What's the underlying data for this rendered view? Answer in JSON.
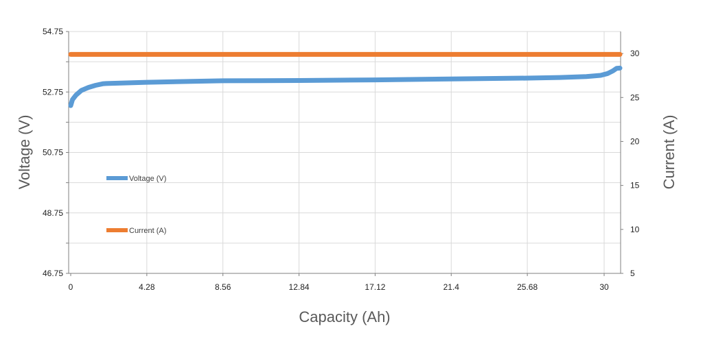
{
  "chart_data": {
    "type": "line",
    "xlabel": "Capacity (Ah)",
    "ylabel": "Voltage (V)",
    "y2label": "Current (A)",
    "xlim": [
      0,
      31
    ],
    "ylim": [
      46.75,
      54.75
    ],
    "y2lim": [
      5,
      32.5
    ],
    "x_ticks": [
      0,
      4.28,
      8.56,
      12.84,
      17.12,
      21.4,
      25.68,
      30
    ],
    "x_tick_labels": [
      "0",
      "4.28",
      "8.56",
      "12.84",
      "17.12",
      "21.4",
      "25.68",
      "30"
    ],
    "y_ticks": [
      46.75,
      48.75,
      50.75,
      52.75,
      54.75
    ],
    "y_tick_labels": [
      "46.75",
      "48.75",
      "50.75",
      "52.75",
      "54.75"
    ],
    "y2_ticks": [
      5,
      10,
      15,
      20,
      25,
      30
    ],
    "y2_tick_labels": [
      "5",
      "10",
      "15",
      "20",
      "25",
      "30"
    ],
    "grid": true,
    "legend_position": "left-inside",
    "series": [
      {
        "name": "Voltage (V)",
        "axis": "left",
        "color": "#5b9bd5",
        "x": [
          0,
          0.1,
          0.3,
          0.6,
          1.0,
          1.4,
          1.8,
          2.0,
          4.28,
          8.56,
          12.84,
          17.12,
          21.4,
          25.68,
          27.5,
          29.0,
          29.8,
          30.2,
          30.5,
          30.7,
          31.0
        ],
        "y": [
          52.3,
          52.5,
          52.65,
          52.8,
          52.9,
          52.97,
          53.02,
          53.03,
          53.07,
          53.12,
          53.13,
          53.15,
          53.18,
          53.21,
          53.23,
          53.26,
          53.3,
          53.36,
          53.45,
          53.53,
          53.54
        ]
      },
      {
        "name": "Current (A)",
        "axis": "right",
        "color": "#ed7d31",
        "x": [
          0,
          31
        ],
        "y": [
          29.9,
          29.9
        ]
      }
    ]
  }
}
